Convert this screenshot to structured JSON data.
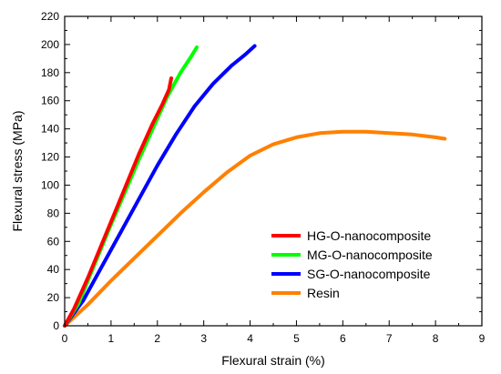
{
  "chart_data": {
    "type": "line",
    "title": "",
    "xlabel": "Flexural strain (%)",
    "ylabel": "Flexural stress (MPa)",
    "xlim": [
      0,
      9
    ],
    "ylim": [
      0,
      220
    ],
    "xticks": [
      "0",
      "1",
      "2",
      "3",
      "4",
      "5",
      "6",
      "7",
      "8",
      "9"
    ],
    "yticks": [
      "0",
      "20",
      "40",
      "60",
      "80",
      "100",
      "120",
      "140",
      "160",
      "180",
      "200",
      "220"
    ],
    "grid": false,
    "legend_position": "lower-right",
    "series": [
      {
        "name": "HG-O-nanocomposite",
        "color": "#ff0000",
        "x": [
          0,
          0.2,
          0.5,
          0.8,
          1.0,
          1.3,
          1.6,
          1.9,
          2.1,
          2.25,
          2.3
        ],
        "y": [
          0,
          12,
          34,
          58,
          74,
          98,
          122,
          144,
          157,
          168,
          176
        ]
      },
      {
        "name": "MG-O-nanocomposite",
        "color": "#00ff00",
        "x": [
          0,
          0.3,
          0.6,
          1.0,
          1.3,
          1.6,
          1.9,
          2.2,
          2.5,
          2.7,
          2.85
        ],
        "y": [
          0,
          16,
          40,
          72,
          95,
          118,
          140,
          162,
          180,
          190,
          198
        ]
      },
      {
        "name": "SG-O-nanocomposite",
        "color": "#0000ff",
        "x": [
          0,
          0.4,
          0.8,
          1.2,
          1.6,
          2.0,
          2.4,
          2.8,
          3.2,
          3.6,
          3.9,
          4.1
        ],
        "y": [
          0,
          18,
          42,
          66,
          90,
          114,
          136,
          156,
          172,
          185,
          193,
          199
        ]
      },
      {
        "name": "Resin",
        "color": "#ff8000",
        "x": [
          0,
          0.5,
          1.0,
          1.5,
          2.0,
          2.5,
          3.0,
          3.5,
          4.0,
          4.5,
          5.0,
          5.5,
          6.0,
          6.5,
          7.0,
          7.5,
          8.0,
          8.2
        ],
        "y": [
          0,
          15,
          32,
          48,
          64,
          80,
          95,
          109,
          121,
          129,
          134,
          137,
          138,
          138,
          137,
          136,
          134,
          133
        ]
      }
    ]
  }
}
